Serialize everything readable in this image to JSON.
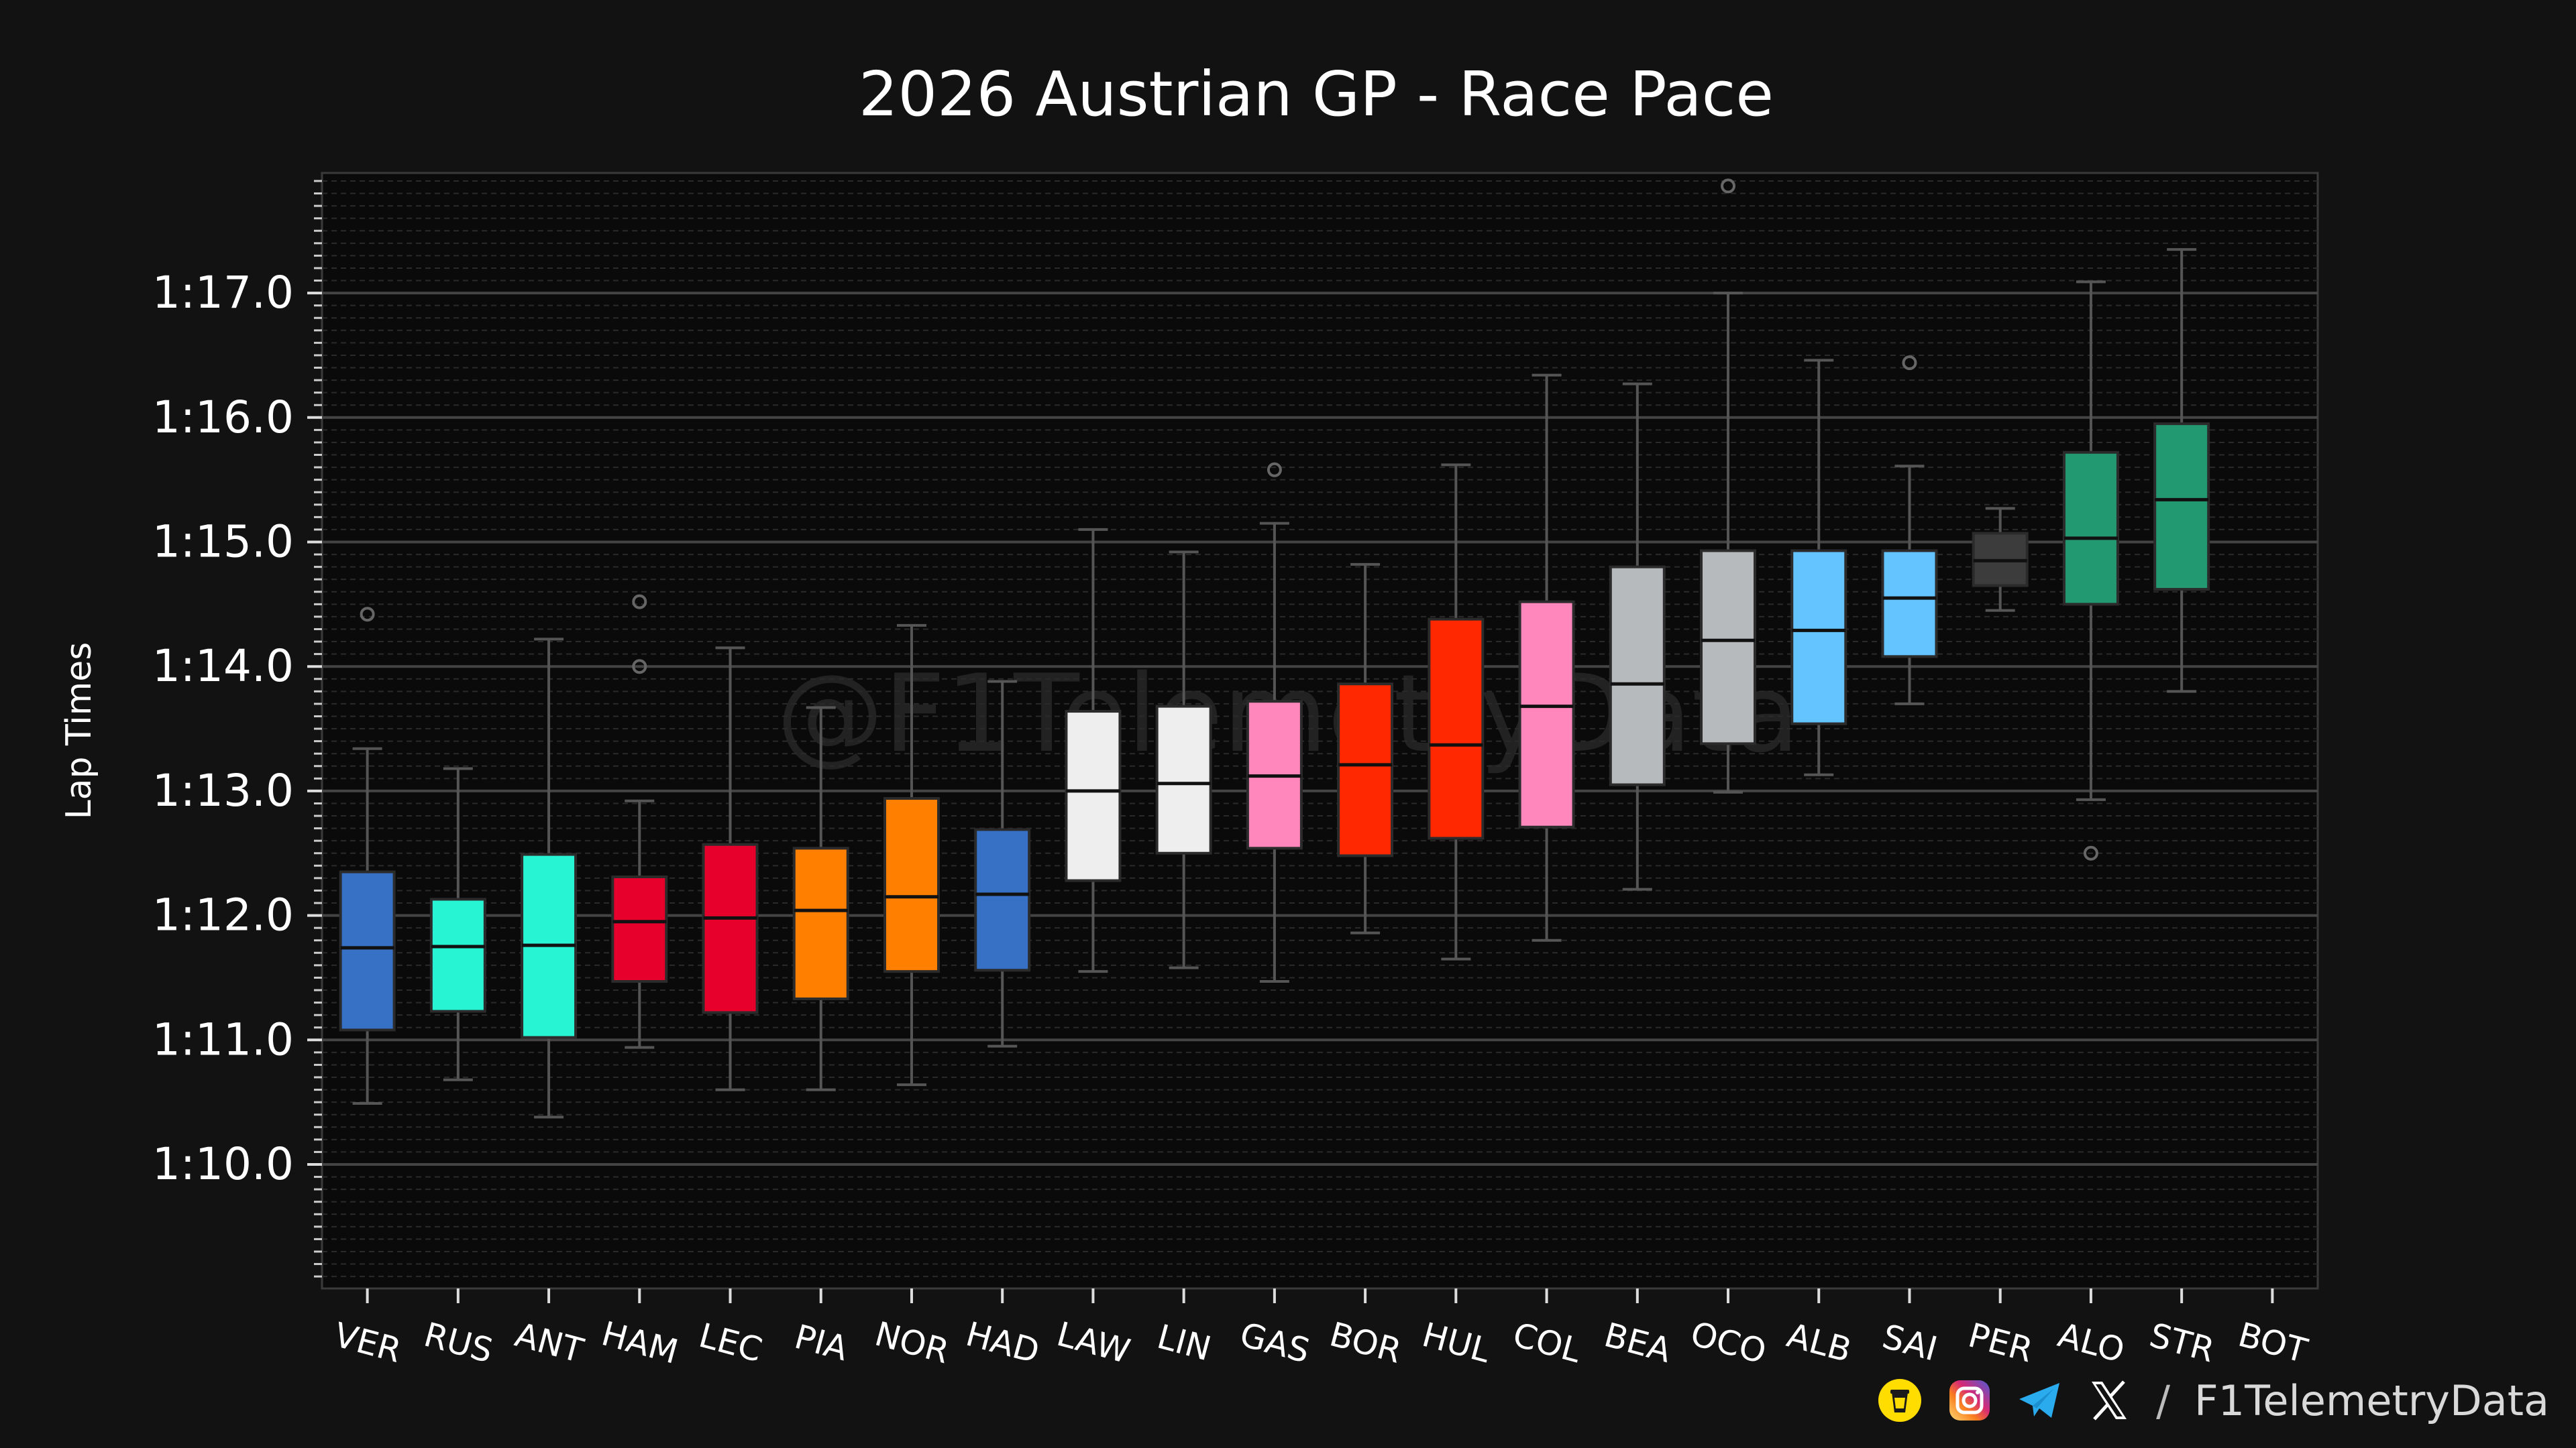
{
  "chart_data": {
    "type": "box",
    "title": "2026 Austrian GP - Race Pace",
    "ylabel": "Lap Times",
    "xlabel": "",
    "watermark": "@F1TelemetryData",
    "ylim": [
      69.0,
      78.0
    ],
    "yticks": [
      {
        "value": 70.0,
        "label": "1:10.0"
      },
      {
        "value": 71.0,
        "label": "1:11.0"
      },
      {
        "value": 72.0,
        "label": "1:12.0"
      },
      {
        "value": 73.0,
        "label": "1:13.0"
      },
      {
        "value": 74.0,
        "label": "1:14.0"
      },
      {
        "value": 75.0,
        "label": "1:15.0"
      },
      {
        "value": 76.0,
        "label": "1:16.0"
      },
      {
        "value": 77.0,
        "label": "1:17.0"
      }
    ],
    "grid": true,
    "drivers": [
      {
        "label": "VER",
        "color": "#3671C6",
        "whislo": 70.49,
        "q1": 71.08,
        "med": 71.74,
        "q3": 72.35,
        "whishi": 73.34,
        "fliers": [
          74.42
        ]
      },
      {
        "label": "RUS",
        "color": "#27F4D2",
        "whislo": 70.68,
        "q1": 71.23,
        "med": 71.75,
        "q3": 72.13,
        "whishi": 73.18,
        "fliers": []
      },
      {
        "label": "ANT",
        "color": "#27F4D2",
        "whislo": 70.38,
        "q1": 71.02,
        "med": 71.76,
        "q3": 72.49,
        "whishi": 74.22,
        "fliers": []
      },
      {
        "label": "HAM",
        "color": "#E8002D",
        "whislo": 70.94,
        "q1": 71.47,
        "med": 71.95,
        "q3": 72.31,
        "whishi": 72.92,
        "fliers": [
          74.0,
          74.52
        ]
      },
      {
        "label": "LEC",
        "color": "#E8002D",
        "whislo": 70.6,
        "q1": 71.22,
        "med": 71.98,
        "q3": 72.57,
        "whishi": 74.15,
        "fliers": []
      },
      {
        "label": "PIA",
        "color": "#FF8000",
        "whislo": 70.6,
        "q1": 71.33,
        "med": 72.04,
        "q3": 72.54,
        "whishi": 73.67,
        "fliers": []
      },
      {
        "label": "NOR",
        "color": "#FF8000",
        "whislo": 70.64,
        "q1": 71.55,
        "med": 72.15,
        "q3": 72.94,
        "whishi": 74.33,
        "fliers": []
      },
      {
        "label": "HAD",
        "color": "#3671C6",
        "whislo": 70.95,
        "q1": 71.56,
        "med": 72.17,
        "q3": 72.69,
        "whishi": 73.88,
        "fliers": []
      },
      {
        "label": "LAW",
        "color": "#EEEEEE",
        "whislo": 71.55,
        "q1": 72.28,
        "med": 73.0,
        "q3": 73.64,
        "whishi": 75.1,
        "fliers": []
      },
      {
        "label": "LIN",
        "color": "#EEEEEE",
        "whislo": 71.58,
        "q1": 72.5,
        "med": 73.06,
        "q3": 73.68,
        "whishi": 74.92,
        "fliers": []
      },
      {
        "label": "GAS",
        "color": "#FF87BC",
        "whislo": 71.47,
        "q1": 72.54,
        "med": 73.12,
        "q3": 73.72,
        "whishi": 75.15,
        "fliers": [
          75.58
        ]
      },
      {
        "label": "BOR",
        "color": "#FF2800",
        "whislo": 71.86,
        "q1": 72.48,
        "med": 73.21,
        "q3": 73.86,
        "whishi": 74.82,
        "fliers": []
      },
      {
        "label": "HUL",
        "color": "#FF2800",
        "whislo": 71.65,
        "q1": 72.62,
        "med": 73.37,
        "q3": 74.38,
        "whishi": 75.62,
        "fliers": []
      },
      {
        "label": "COL",
        "color": "#FF87BC",
        "whislo": 71.8,
        "q1": 72.71,
        "med": 73.68,
        "q3": 74.52,
        "whishi": 76.34,
        "fliers": []
      },
      {
        "label": "BEA",
        "color": "#B6BABD",
        "whislo": 72.21,
        "q1": 73.05,
        "med": 73.86,
        "q3": 74.8,
        "whishi": 76.27,
        "fliers": []
      },
      {
        "label": "OCO",
        "color": "#B6BABD",
        "whislo": 72.99,
        "q1": 73.38,
        "med": 74.21,
        "q3": 74.93,
        "whishi": 77.0,
        "fliers": [
          77.86
        ]
      },
      {
        "label": "ALB",
        "color": "#64C4FF",
        "whislo": 73.13,
        "q1": 73.54,
        "med": 74.29,
        "q3": 74.93,
        "whishi": 76.46,
        "fliers": []
      },
      {
        "label": "SAI",
        "color": "#64C4FF",
        "whislo": 73.7,
        "q1": 74.08,
        "med": 74.55,
        "q3": 74.93,
        "whishi": 75.61,
        "fliers": [
          76.44
        ]
      },
      {
        "label": "PER",
        "color": "#3C3C3C",
        "whislo": 74.45,
        "q1": 74.65,
        "med": 74.85,
        "q3": 75.07,
        "whishi": 75.27,
        "fliers": []
      },
      {
        "label": "ALO",
        "color": "#229971",
        "whislo": 72.93,
        "q1": 74.5,
        "med": 75.03,
        "q3": 75.72,
        "whishi": 77.09,
        "fliers": [
          72.5
        ]
      },
      {
        "label": "STR",
        "color": "#229971",
        "whislo": 73.8,
        "q1": 74.62,
        "med": 75.34,
        "q3": 75.95,
        "whishi": 77.35,
        "fliers": []
      },
      {
        "label": "BOT",
        "color": "#9B0000",
        "whislo": null,
        "q1": null,
        "med": null,
        "q3": null,
        "whishi": null,
        "fliers": []
      }
    ]
  },
  "footer": {
    "separator": "/",
    "handle": "F1TelemetryData",
    "icons": [
      "buymeacoffee-icon",
      "instagram-icon",
      "telegram-icon",
      "x-icon"
    ]
  },
  "colors": {
    "background": "#121212",
    "plot_background": "#0A0A0A",
    "grid": "#3A3A3A",
    "text": "#FFFFFF"
  }
}
